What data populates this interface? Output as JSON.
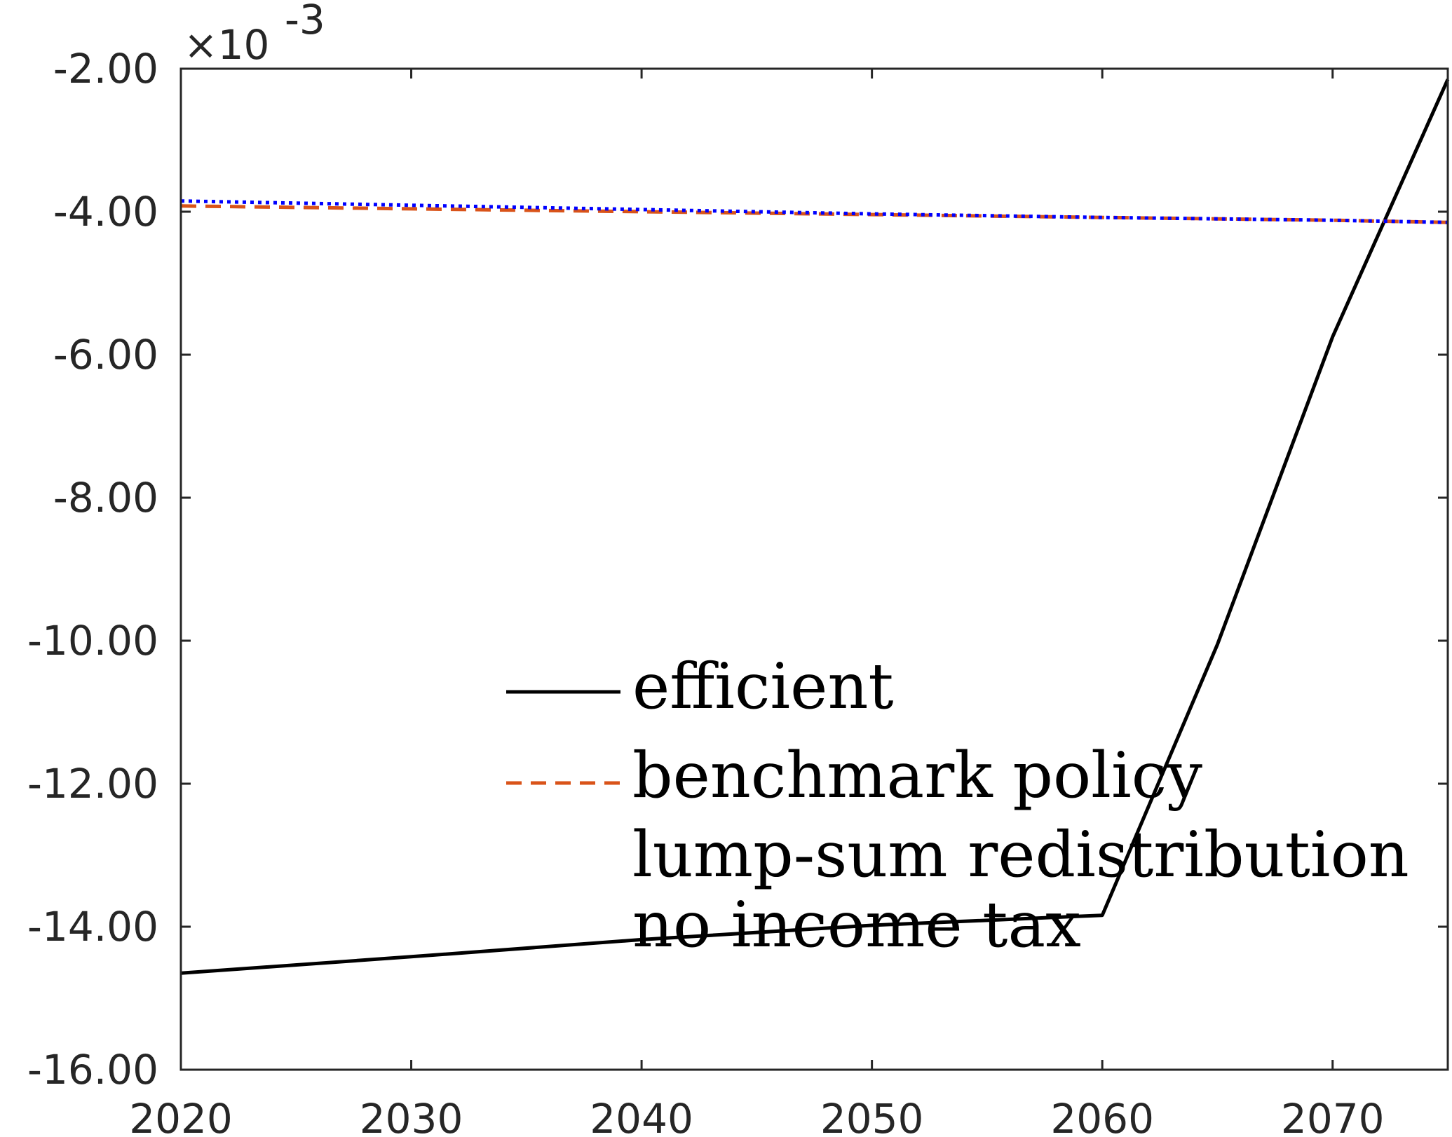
{
  "chart_data": {
    "type": "line",
    "title": "",
    "xlabel": "",
    "ylabel": "",
    "xlim": [
      2020,
      2075
    ],
    "ylim": [
      -16.0,
      -2.0
    ],
    "xticks": [
      2020,
      2030,
      2040,
      2050,
      2060,
      2070
    ],
    "xtick_labels": [
      "2020",
      "2030",
      "2040",
      "2050",
      "2060",
      "2070"
    ],
    "yticks": [
      -16,
      -14,
      -12,
      -10,
      -8,
      -6,
      -4,
      -2
    ],
    "ytick_labels": [
      "-16.00",
      "-14.00",
      "-12.00",
      "-10.00",
      "-8.00",
      "-6.00",
      "-4.00",
      "-2.00"
    ],
    "y_exponent_label": "×10",
    "y_exponent_power": "-3",
    "grid": false,
    "legend_position": "lower-center",
    "series": [
      {
        "name": "efficient",
        "color": "#000000",
        "style": "solid",
        "x": [
          2020,
          2030,
          2040,
          2050,
          2060,
          2065,
          2070,
          2075
        ],
        "y": [
          -14.65,
          -14.42,
          -14.18,
          -13.98,
          -13.84,
          -10.05,
          -5.75,
          -2.15
        ]
      },
      {
        "name": "benchmark policy",
        "color": "#d95319",
        "style": "dashed",
        "x": [
          2020,
          2030,
          2040,
          2050,
          2060,
          2070,
          2075
        ],
        "y": [
          -3.92,
          -3.96,
          -4.0,
          -4.04,
          -4.08,
          -4.12,
          -4.15
        ]
      },
      {
        "name": "lump-sum redistribution",
        "color": "#0000ff",
        "style": "dotted",
        "x": [
          2020,
          2030,
          2040,
          2050,
          2060,
          2070,
          2075
        ],
        "y": [
          -3.85,
          -3.91,
          -3.97,
          -4.03,
          -4.08,
          -4.12,
          -4.15
        ]
      },
      {
        "name": "no income tax",
        "color": "#000000",
        "style": "none",
        "x": [],
        "y": []
      }
    ]
  }
}
